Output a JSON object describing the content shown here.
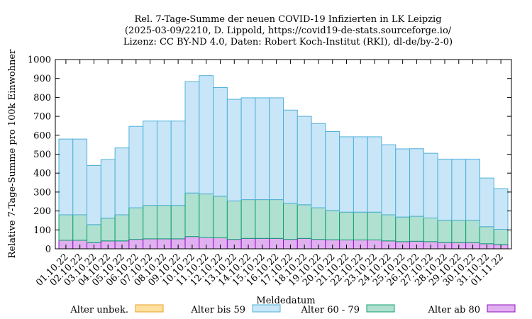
{
  "chart_data": {
    "type": "bar",
    "stacked": true,
    "title": [
      "Rel. 7-Tage-Summe der neuen COVID-19 Infizierten in LK Leipzig",
      "(2025-03-09/2210, D. Lippold, https://covid19-de-stats.sourceforge.io/",
      "Lizenz: CC BY-ND 4.0, Daten: Robert Koch-Institut (RKI), dl-de/by-2-0)"
    ],
    "xlabel": "Meldedatum",
    "ylabel": "Relative 7-Tage-Summe pro 100k Einwohner",
    "ylim": [
      0,
      1000
    ],
    "yticks": [
      0,
      100,
      200,
      300,
      400,
      500,
      600,
      700,
      800,
      900,
      1000
    ],
    "categories": [
      "01.10.22",
      "02.10.22",
      "03.10.22",
      "04.10.22",
      "05.10.22",
      "06.10.22",
      "07.10.22",
      "08.10.22",
      "09.10.22",
      "10.10.22",
      "11.10.22",
      "12.10.22",
      "13.10.22",
      "14.10.22",
      "15.10.22",
      "16.10.22",
      "17.10.22",
      "18.10.22",
      "19.10.22",
      "20.10.22",
      "21.10.22",
      "22.10.22",
      "23.10.22",
      "24.10.22",
      "25.10.22",
      "26.10.22",
      "27.10.22",
      "28.10.22",
      "29.10.22",
      "30.10.22",
      "31.10.22",
      "01.11.22"
    ],
    "series": [
      {
        "name": "Alter unbek.",
        "color": "#ffe0a0",
        "edge": "#e8a020",
        "values": [
          0,
          0,
          0,
          0,
          0,
          0,
          0,
          0,
          0,
          0,
          0,
          0,
          0,
          0,
          0,
          0,
          0,
          0,
          0,
          0,
          0,
          0,
          0,
          0,
          0,
          0,
          0,
          0,
          0,
          0,
          0,
          0
        ]
      },
      {
        "name": "Alter ab 80",
        "color": "#e0b0f0",
        "edge": "#9010c0",
        "values": [
          45,
          45,
          33,
          42,
          42,
          50,
          53,
          53,
          53,
          65,
          60,
          58,
          50,
          55,
          55,
          55,
          50,
          55,
          50,
          48,
          47,
          47,
          47,
          42,
          38,
          40,
          38,
          33,
          33,
          33,
          27,
          23
        ]
      },
      {
        "name": "Alter 60 - 79",
        "color": "#b0e0d0",
        "edge": "#10a070",
        "values": [
          135,
          135,
          95,
          120,
          138,
          167,
          177,
          177,
          177,
          230,
          230,
          220,
          203,
          205,
          205,
          205,
          190,
          178,
          167,
          155,
          147,
          147,
          147,
          138,
          130,
          132,
          125,
          118,
          118,
          118,
          90,
          80
        ]
      },
      {
        "name": "Alter bis 59",
        "color": "#c8e6f8",
        "edge": "#50b0d8",
        "values": [
          400,
          400,
          312,
          310,
          353,
          430,
          445,
          445,
          445,
          588,
          625,
          574,
          537,
          538,
          538,
          538,
          493,
          467,
          445,
          417,
          398,
          398,
          398,
          370,
          360,
          357,
          342,
          323,
          323,
          323,
          257,
          215
        ]
      }
    ],
    "legend": {
      "placement": "bottom",
      "order": [
        "Alter unbek.",
        "Alter bis 59",
        "Alter 60 - 79",
        "Alter ab 80"
      ]
    }
  }
}
